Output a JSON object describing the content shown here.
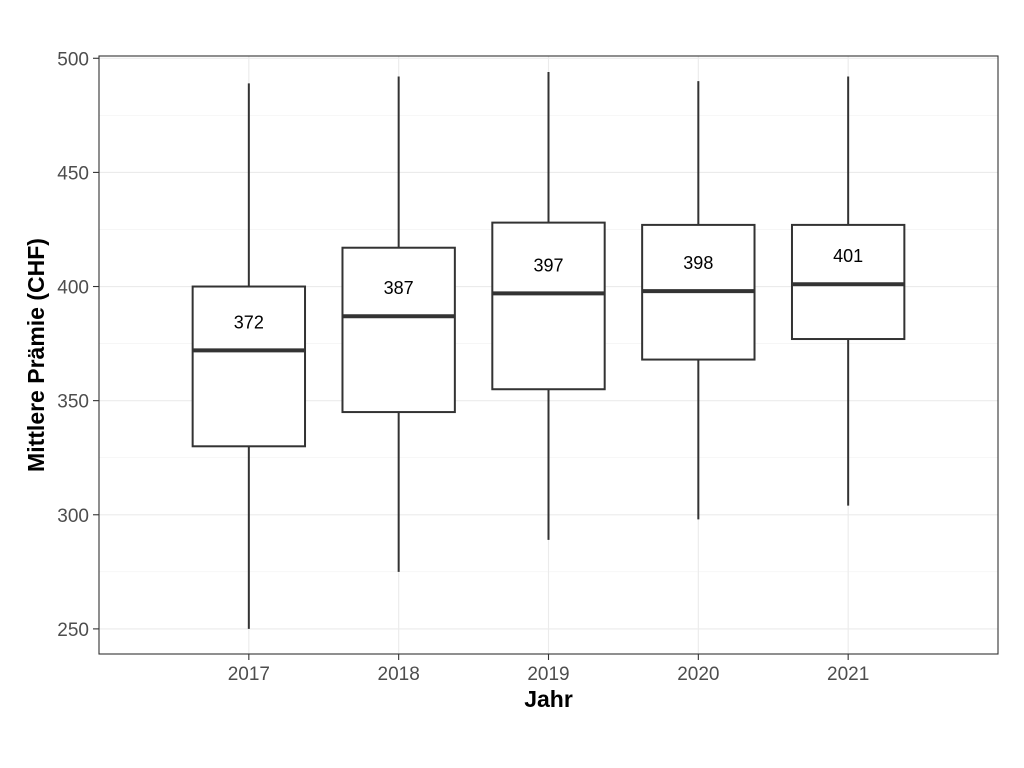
{
  "chart_data": {
    "type": "boxplot",
    "xlabel": "Jahr",
    "ylabel": "Mittlere Prämie (CHF)",
    "ylim": [
      239,
      501
    ],
    "yticks": [
      250,
      300,
      350,
      400,
      450,
      500
    ],
    "grid": true,
    "categories": [
      "2017",
      "2018",
      "2019",
      "2020",
      "2021"
    ],
    "boxes": [
      {
        "category": "2017",
        "min": 250,
        "q1": 330,
        "median": 372,
        "q3": 400,
        "max": 489,
        "label": "372"
      },
      {
        "category": "2018",
        "min": 275,
        "q1": 345,
        "median": 387,
        "q3": 417,
        "max": 492,
        "label": "387"
      },
      {
        "category": "2019",
        "min": 289,
        "q1": 355,
        "median": 397,
        "q3": 428,
        "max": 494,
        "label": "397"
      },
      {
        "category": "2020",
        "min": 298,
        "q1": 368,
        "median": 398,
        "q3": 427,
        "max": 490,
        "label": "398"
      },
      {
        "category": "2021",
        "min": 304,
        "q1": 377,
        "median": 401,
        "q3": 427,
        "max": 492,
        "label": "401"
      }
    ]
  }
}
